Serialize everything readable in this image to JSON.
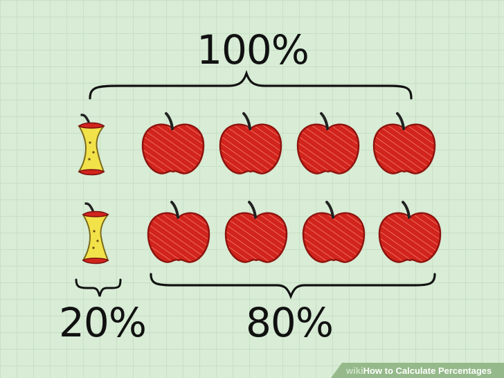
{
  "labels": {
    "total": "100%",
    "part_small": "20%",
    "part_large": "80%"
  },
  "watermark": {
    "brand": "wiki",
    "how": "How",
    "rest": " to Calculate Percentages"
  },
  "colors": {
    "background": "#d8ecd6",
    "grid": "#bcd9b8",
    "apple": "#d1241c",
    "apple_core": "#f2e24a",
    "ink": "#111111"
  },
  "rows": [
    {
      "cores": 1,
      "apples": 4
    },
    {
      "cores": 1,
      "apples": 4
    }
  ]
}
